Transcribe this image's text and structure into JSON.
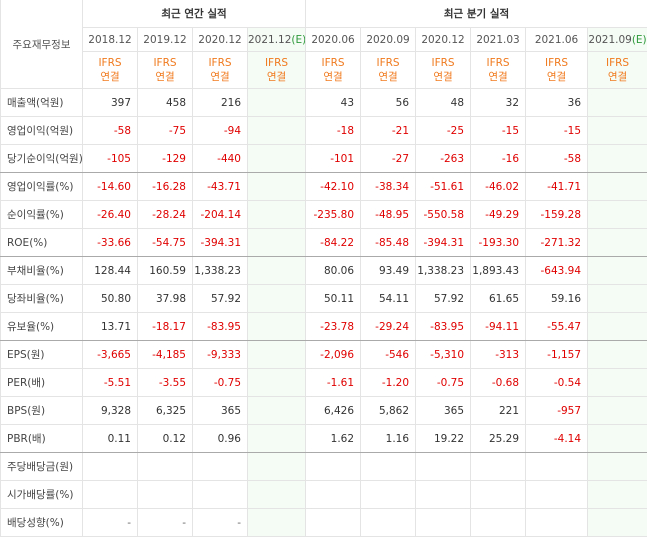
{
  "header": {
    "title": "주요재무정보",
    "annual": "최근 연간 실적",
    "quarterly": "최근 분기 실적"
  },
  "columns": [
    {
      "period": "2018.12",
      "basis": "IFRS",
      "scope": "연결"
    },
    {
      "period": "2019.12",
      "basis": "IFRS",
      "scope": "연결"
    },
    {
      "period": "2020.12",
      "basis": "IFRS",
      "scope": "연결"
    },
    {
      "period": "2021.12",
      "estimate": "(E)",
      "basis": "IFRS",
      "scope": "연결"
    },
    {
      "period": "2020.06",
      "basis": "IFRS",
      "scope": "연결"
    },
    {
      "period": "2020.09",
      "basis": "IFRS",
      "scope": "연결"
    },
    {
      "period": "2020.12",
      "basis": "IFRS",
      "scope": "연결"
    },
    {
      "period": "2021.03",
      "basis": "IFRS",
      "scope": "연결"
    },
    {
      "period": "2021.06",
      "basis": "IFRS",
      "scope": "연결"
    },
    {
      "period": "2021.09",
      "estimate": "(E)",
      "basis": "IFRS",
      "scope": "연결"
    }
  ],
  "rows": [
    {
      "label": "매출액(억원)",
      "values": [
        "397",
        "458",
        "216",
        null,
        "43",
        "56",
        "48",
        "32",
        "36",
        null
      ]
    },
    {
      "label": "영업이익(억원)",
      "values": [
        "-58",
        "-75",
        "-94",
        null,
        "-18",
        "-21",
        "-25",
        "-15",
        "-15",
        null
      ]
    },
    {
      "label": "당기순이익(억원)",
      "values": [
        "-105",
        "-129",
        "-440",
        null,
        "-101",
        "-27",
        "-263",
        "-16",
        "-58",
        null
      ]
    },
    {
      "label": "영업이익률(%)",
      "values": [
        "-14.60",
        "-16.28",
        "-43.71",
        null,
        "-42.10",
        "-38.34",
        "-51.61",
        "-46.02",
        "-41.71",
        null
      ]
    },
    {
      "label": "순이익률(%)",
      "values": [
        "-26.40",
        "-28.24",
        "-204.14",
        null,
        "-235.80",
        "-48.95",
        "-550.58",
        "-49.29",
        "-159.28",
        null
      ]
    },
    {
      "label": "ROE(%)",
      "values": [
        "-33.66",
        "-54.75",
        "-394.31",
        null,
        "-84.22",
        "-85.48",
        "-394.31",
        "-193.30",
        "-271.32",
        null
      ]
    },
    {
      "label": "부채비율(%)",
      "values": [
        "128.44",
        "160.59",
        "1,338.23",
        null,
        "80.06",
        "93.49",
        "1,338.23",
        "1,893.43",
        "-643.94",
        null
      ]
    },
    {
      "label": "당좌비율(%)",
      "values": [
        "50.80",
        "37.98",
        "57.92",
        null,
        "50.11",
        "54.11",
        "57.92",
        "61.65",
        "59.16",
        null
      ]
    },
    {
      "label": "유보율(%)",
      "values": [
        "13.71",
        "-18.17",
        "-83.95",
        null,
        "-23.78",
        "-29.24",
        "-83.95",
        "-94.11",
        "-55.47",
        null
      ]
    },
    {
      "label": "EPS(원)",
      "values": [
        "-3,665",
        "-4,185",
        "-9,333",
        null,
        "-2,096",
        "-546",
        "-5,310",
        "-313",
        "-1,157",
        null
      ]
    },
    {
      "label": "PER(배)",
      "values": [
        "-5.51",
        "-3.55",
        "-0.75",
        null,
        "-1.61",
        "-1.20",
        "-0.75",
        "-0.68",
        "-0.54",
        null
      ]
    },
    {
      "label": "BPS(원)",
      "values": [
        "9,328",
        "6,325",
        "365",
        null,
        "6,426",
        "5,862",
        "365",
        "221",
        "-957",
        null
      ]
    },
    {
      "label": "PBR(배)",
      "values": [
        "0.11",
        "0.12",
        "0.96",
        null,
        "1.62",
        "1.16",
        "19.22",
        "25.29",
        "-4.14",
        null
      ]
    },
    {
      "label": "주당배당금(원)",
      "values": [
        null,
        null,
        null,
        null,
        null,
        null,
        null,
        null,
        null,
        null
      ]
    },
    {
      "label": "시가배당률(%)",
      "values": [
        null,
        null,
        null,
        null,
        null,
        null,
        null,
        null,
        null,
        null
      ]
    },
    {
      "label": "배당성향(%)",
      "values": [
        "-",
        "-",
        "-",
        null,
        null,
        null,
        null,
        null,
        null,
        null
      ]
    }
  ]
}
